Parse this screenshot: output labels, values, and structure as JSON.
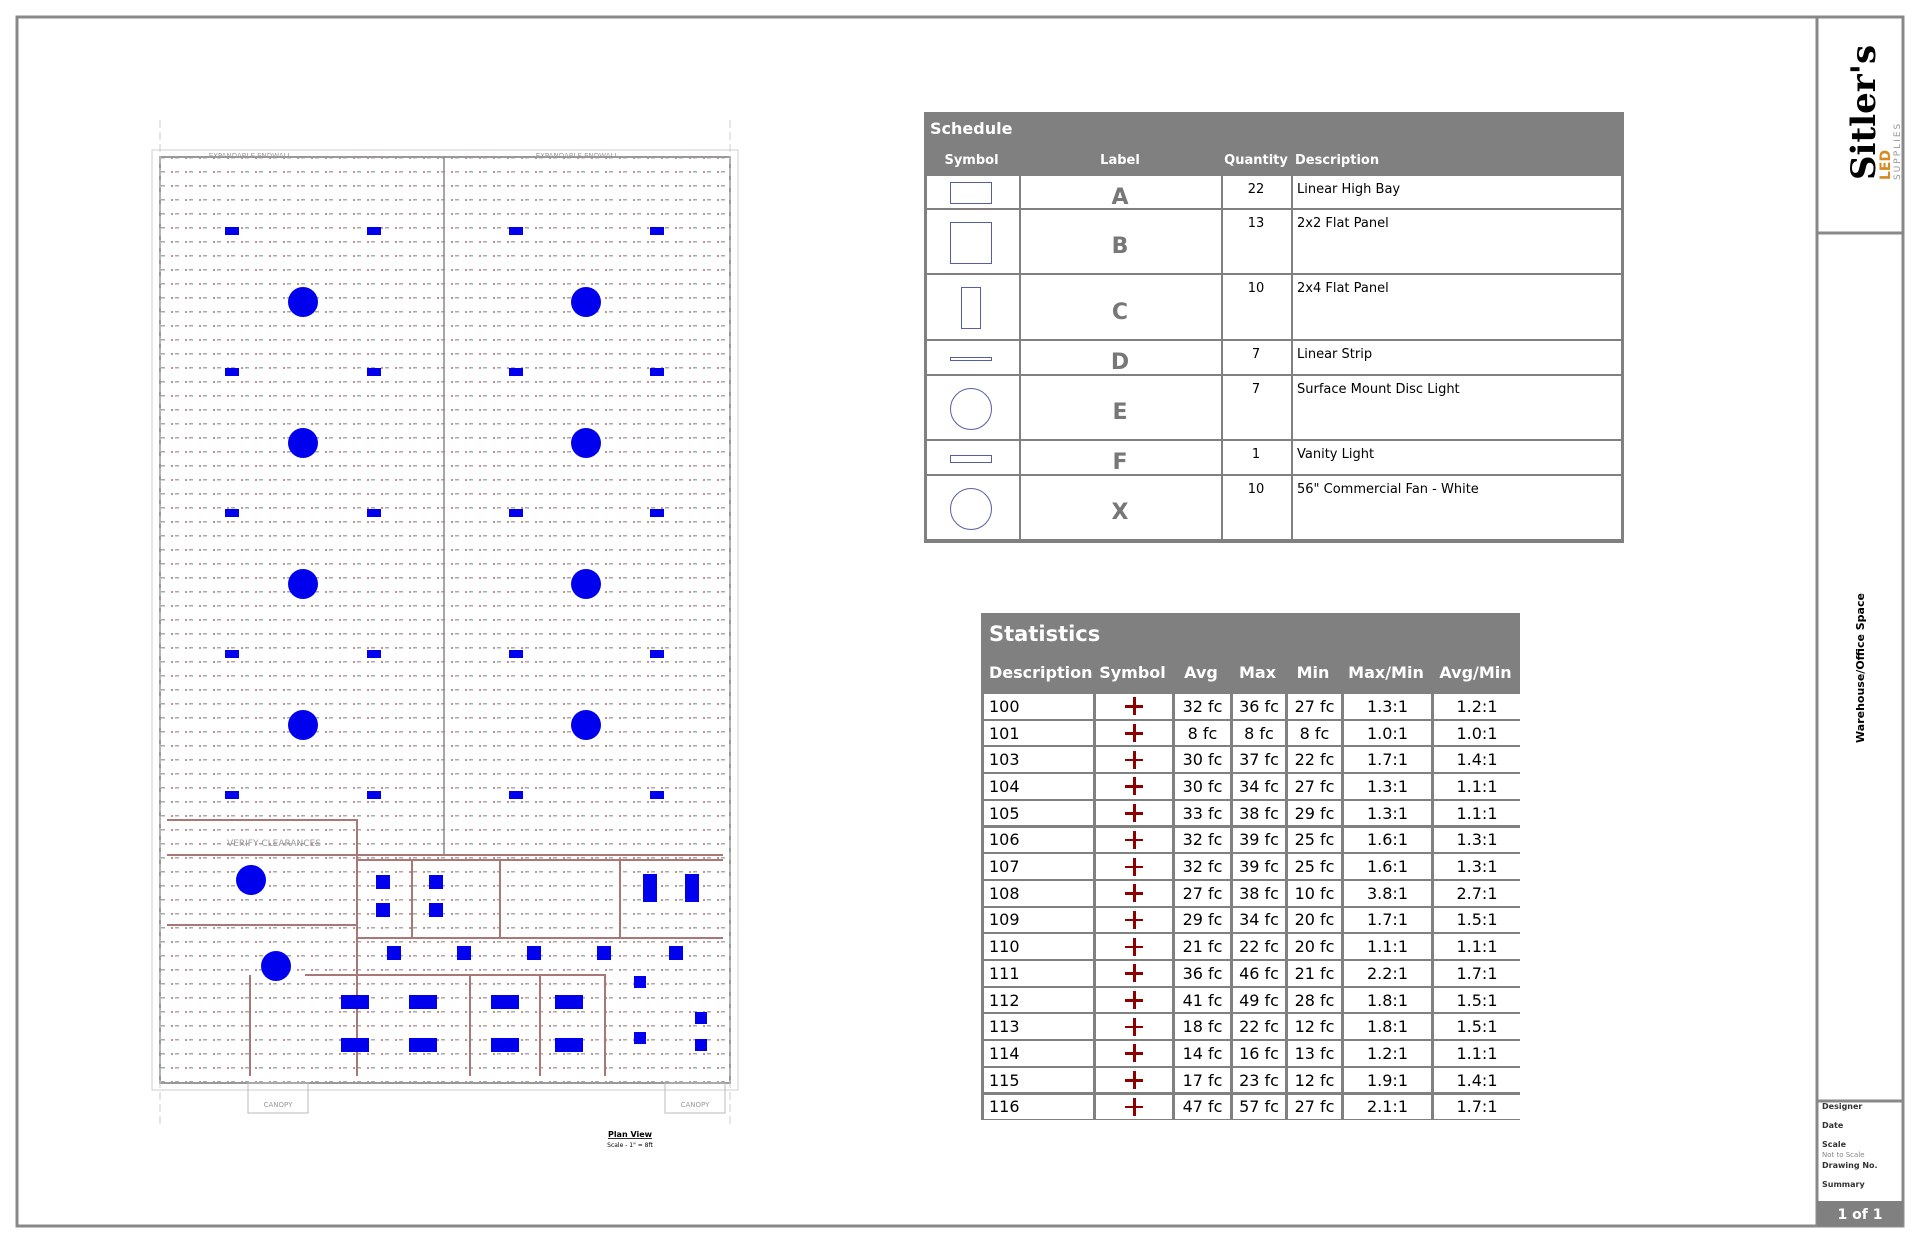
{
  "schedule": {
    "title": "Schedule",
    "headers": [
      "Symbol",
      "Label",
      "Quantity",
      "Description"
    ],
    "rows": [
      {
        "label": "A",
        "quantity": 22,
        "description": "Linear High Bay"
      },
      {
        "label": "B",
        "quantity": 13,
        "description": "2x2 Flat Panel"
      },
      {
        "label": "C",
        "quantity": 10,
        "description": "2x4 Flat Panel"
      },
      {
        "label": "D",
        "quantity": 7,
        "description": "Linear Strip"
      },
      {
        "label": "E",
        "quantity": 7,
        "description": "Surface Mount Disc Light"
      },
      {
        "label": "F",
        "quantity": 1,
        "description": "Vanity Light"
      },
      {
        "label": "X",
        "quantity": 10,
        "description": "56\" Commercial Fan - White"
      }
    ]
  },
  "statistics": {
    "title": "Statistics",
    "headers": [
      "Description",
      "Symbol",
      "Avg",
      "Max",
      "Min",
      "Max/Min",
      "Avg/Min"
    ],
    "rows": [
      [
        "100",
        "32 fc",
        "36 fc",
        "27 fc",
        "1.3:1",
        "1.2:1"
      ],
      [
        "101",
        "8 fc",
        "8 fc",
        "8 fc",
        "1.0:1",
        "1.0:1"
      ],
      [
        "103",
        "30 fc",
        "37 fc",
        "22 fc",
        "1.7:1",
        "1.4:1"
      ],
      [
        "104",
        "30 fc",
        "34 fc",
        "27 fc",
        "1.3:1",
        "1.1:1"
      ],
      [
        "105",
        "33 fc",
        "38 fc",
        "29 fc",
        "1.3:1",
        "1.1:1"
      ],
      [
        "106",
        "32 fc",
        "39 fc",
        "25 fc",
        "1.6:1",
        "1.3:1"
      ],
      [
        "107",
        "32 fc",
        "39 fc",
        "25 fc",
        "1.6:1",
        "1.3:1"
      ],
      [
        "108",
        "27 fc",
        "38 fc",
        "10 fc",
        "3.8:1",
        "2.7:1"
      ],
      [
        "109",
        "29 fc",
        "34 fc",
        "20 fc",
        "1.7:1",
        "1.5:1"
      ],
      [
        "110",
        "21 fc",
        "22 fc",
        "20 fc",
        "1.1:1",
        "1.1:1"
      ],
      [
        "111",
        "36 fc",
        "46 fc",
        "21 fc",
        "2.2:1",
        "1.7:1"
      ],
      [
        "112",
        "41 fc",
        "49 fc",
        "28 fc",
        "1.8:1",
        "1.5:1"
      ],
      [
        "113",
        "18 fc",
        "22 fc",
        "12 fc",
        "1.8:1",
        "1.5:1"
      ],
      [
        "114",
        "14 fc",
        "16 fc",
        "13 fc",
        "1.2:1",
        "1.1:1"
      ],
      [
        "115",
        "17 fc",
        "23 fc",
        "12 fc",
        "1.9:1",
        "1.4:1"
      ],
      [
        "116",
        "47 fc",
        "57 fc",
        "27 fc",
        "2.1:1",
        "1.7:1"
      ]
    ]
  },
  "plan": {
    "title": "Plan View",
    "scale": "Scale - 1\" = 8ft",
    "labels": [
      "EXPANDABLE ENDWALL",
      "EXPANDABLE ENDWALL",
      "VERIFY CLEARANCES",
      "CANOPY",
      "CANOPY"
    ]
  },
  "title_block": {
    "logo_name": "Sitler's",
    "logo_sub": "LED",
    "logo_tag": "SUPPLIES",
    "project": "Warehouse/Office Space",
    "fields": [
      "Designer",
      "Date",
      "Scale",
      "Not to Scale",
      "Drawing No.",
      "Summary"
    ],
    "page": "1 of 1"
  }
}
